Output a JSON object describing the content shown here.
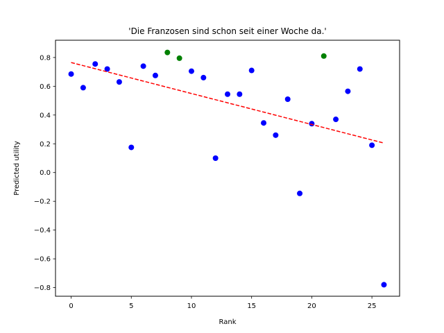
{
  "chart_data": {
    "type": "scatter",
    "title": "'Die Franzosen sind schon seit einer Woche da.'",
    "xlabel": "Rank",
    "ylabel": "Predicted utility",
    "xlim": [
      -1.3,
      27.3
    ],
    "ylim": [
      -0.86,
      0.92
    ],
    "xticks": [
      0,
      5,
      10,
      15,
      20,
      25
    ],
    "yticks": [
      -0.8,
      -0.6,
      -0.4,
      -0.2,
      0.0,
      0.2,
      0.4,
      0.6,
      0.8
    ],
    "ytick_labels": [
      "−0.8",
      "−0.6",
      "−0.4",
      "−0.2",
      "0.0",
      "0.2",
      "0.4",
      "0.6",
      "0.8"
    ],
    "grid": false,
    "legend": null,
    "colors": {
      "blue": "#0000ff",
      "green": "#008000",
      "trend": "#ff0000"
    },
    "points": [
      {
        "x": 0,
        "y": 0.685,
        "color": "blue"
      },
      {
        "x": 1,
        "y": 0.59,
        "color": "blue"
      },
      {
        "x": 2,
        "y": 0.755,
        "color": "blue"
      },
      {
        "x": 3,
        "y": 0.72,
        "color": "blue"
      },
      {
        "x": 4,
        "y": 0.63,
        "color": "blue"
      },
      {
        "x": 5,
        "y": 0.175,
        "color": "blue"
      },
      {
        "x": 6,
        "y": 0.74,
        "color": "blue"
      },
      {
        "x": 7,
        "y": 0.675,
        "color": "blue"
      },
      {
        "x": 8,
        "y": 0.835,
        "color": "green"
      },
      {
        "x": 9,
        "y": 0.795,
        "color": "green"
      },
      {
        "x": 10,
        "y": 0.705,
        "color": "blue"
      },
      {
        "x": 11,
        "y": 0.66,
        "color": "blue"
      },
      {
        "x": 12,
        "y": 0.1,
        "color": "blue"
      },
      {
        "x": 13,
        "y": 0.545,
        "color": "blue"
      },
      {
        "x": 14,
        "y": 0.545,
        "color": "blue"
      },
      {
        "x": 15,
        "y": 0.71,
        "color": "blue"
      },
      {
        "x": 16,
        "y": 0.345,
        "color": "blue"
      },
      {
        "x": 17,
        "y": 0.26,
        "color": "blue"
      },
      {
        "x": 18,
        "y": 0.51,
        "color": "blue"
      },
      {
        "x": 19,
        "y": -0.145,
        "color": "blue"
      },
      {
        "x": 20,
        "y": 0.34,
        "color": "blue"
      },
      {
        "x": 21,
        "y": 0.81,
        "color": "green"
      },
      {
        "x": 22,
        "y": 0.37,
        "color": "blue"
      },
      {
        "x": 23,
        "y": 0.565,
        "color": "blue"
      },
      {
        "x": 24,
        "y": 0.72,
        "color": "blue"
      },
      {
        "x": 25,
        "y": 0.19,
        "color": "blue"
      },
      {
        "x": 26,
        "y": -0.78,
        "color": "blue"
      }
    ],
    "trend_line": {
      "style": "dashed",
      "x": [
        0,
        26
      ],
      "y": [
        0.765,
        0.205
      ]
    }
  }
}
